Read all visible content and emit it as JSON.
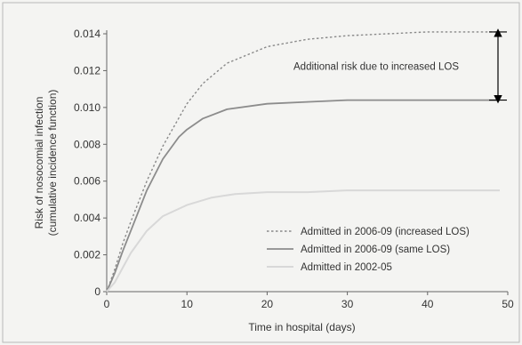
{
  "chart_data": {
    "type": "line",
    "xlabel": "Time in hospital (days)",
    "ylabel": [
      "Risk of nosocomial infection",
      "(cumulative incidence function)"
    ],
    "xlim": [
      0,
      50
    ],
    "ylim": [
      0,
      0.014
    ],
    "x_ticks": [
      0,
      10,
      20,
      30,
      40,
      50
    ],
    "y_ticks": [
      "0",
      "0.002",
      "0.004",
      "0.006",
      "0.008",
      "0.010",
      "0.012",
      "0.014"
    ],
    "legend_position": "bottom-right",
    "annotation": {
      "text": "Additional risk due to increased LOS",
      "from_y": 0.0104,
      "to_y": 0.0141
    },
    "series": [
      {
        "name": "Admitted in 2006-09 (increased LOS)",
        "style": "dotted",
        "color": "#8a8a8a",
        "points": [
          [
            0,
            0
          ],
          [
            1,
            0.0012
          ],
          [
            2,
            0.0026
          ],
          [
            3,
            0.0038
          ],
          [
            5,
            0.006
          ],
          [
            7,
            0.0079
          ],
          [
            10,
            0.0102
          ],
          [
            12,
            0.0113
          ],
          [
            15,
            0.0124
          ],
          [
            20,
            0.0133
          ],
          [
            25,
            0.0137
          ],
          [
            30,
            0.0139
          ],
          [
            35,
            0.014
          ],
          [
            40,
            0.0141
          ],
          [
            45,
            0.0141
          ],
          [
            49,
            0.0141
          ]
        ]
      },
      {
        "name": "Admitted in 2006-09 (same LOS)",
        "style": "solid",
        "color": "#8c8c8c",
        "points": [
          [
            0,
            0
          ],
          [
            1,
            0.001
          ],
          [
            2,
            0.0022
          ],
          [
            3,
            0.0033
          ],
          [
            5,
            0.0055
          ],
          [
            7,
            0.0072
          ],
          [
            9,
            0.0084
          ],
          [
            10,
            0.0088
          ],
          [
            12,
            0.0094
          ],
          [
            15,
            0.0099
          ],
          [
            20,
            0.0102
          ],
          [
            25,
            0.0103
          ],
          [
            30,
            0.0104
          ],
          [
            40,
            0.0104
          ],
          [
            49,
            0.0104
          ]
        ]
      },
      {
        "name": "Admitted in 2002-05",
        "style": "solid",
        "color": "#d8d8d8",
        "points": [
          [
            0,
            0
          ],
          [
            1,
            0.0005
          ],
          [
            2,
            0.0013
          ],
          [
            3,
            0.0021
          ],
          [
            5,
            0.0033
          ],
          [
            7,
            0.0041
          ],
          [
            10,
            0.0047
          ],
          [
            13,
            0.0051
          ],
          [
            16,
            0.0053
          ],
          [
            20,
            0.0054
          ],
          [
            25,
            0.0054
          ],
          [
            30,
            0.0055
          ],
          [
            40,
            0.0055
          ],
          [
            49,
            0.0055
          ]
        ]
      }
    ]
  }
}
